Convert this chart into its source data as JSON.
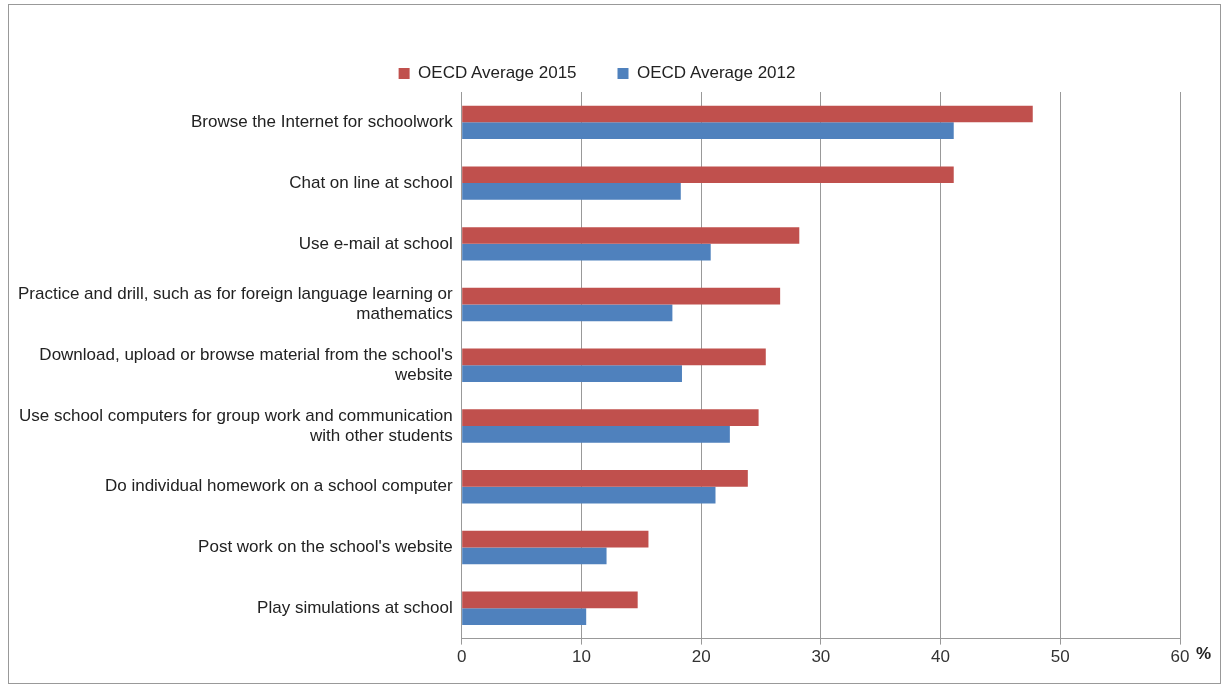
{
  "chart_data": {
    "type": "bar",
    "orientation": "horizontal",
    "xlabel": "%",
    "categories": [
      "Browse the Internet for schoolwork",
      "Chat on line at school",
      "Use e-mail at school",
      "Practice and drill, such as for foreign language learning or mathematics",
      "Download, upload or browse material from the school's website",
      "Use school computers for group work and communication with other students",
      "Do individual homework on a school computer",
      "Post work on the school's website",
      "Play simulations at school"
    ],
    "series": [
      {
        "name": "OECD Average 2015",
        "color": "#c0504d",
        "values": [
          47.7,
          41.1,
          28.2,
          26.6,
          25.4,
          24.8,
          23.9,
          15.6,
          14.7
        ]
      },
      {
        "name": "OECD Average 2012",
        "color": "#4f81bd",
        "values": [
          41.1,
          18.3,
          20.8,
          17.6,
          18.4,
          22.4,
          21.2,
          12.1,
          10.4
        ]
      }
    ],
    "xlim": [
      0,
      60
    ],
    "xticks": [
      0,
      10,
      20,
      30,
      40,
      50,
      60
    ],
    "grid": "x",
    "legend": "top"
  }
}
